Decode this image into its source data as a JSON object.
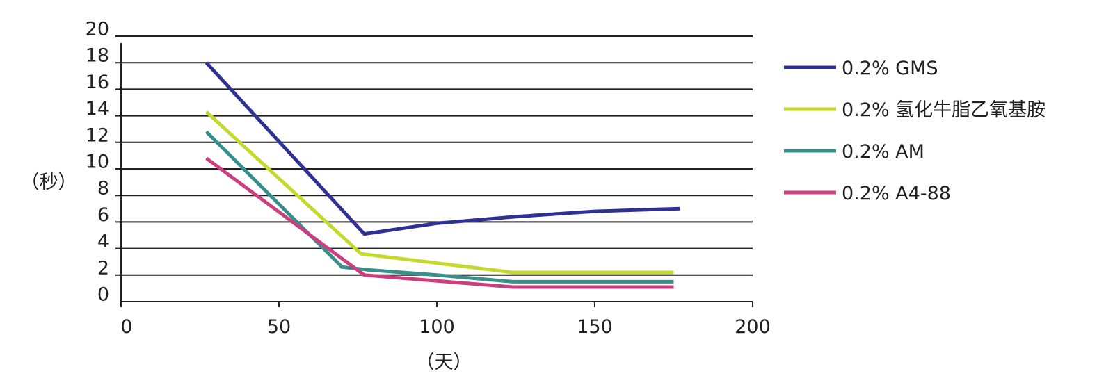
{
  "chart_data": {
    "type": "line",
    "xlabel": "（天）",
    "ylabel": "（秒）",
    "xlim": [
      0,
      200
    ],
    "ylim": [
      0,
      20
    ],
    "x_ticks": [
      "0",
      "50",
      "100",
      "150",
      "200"
    ],
    "y_ticks": [
      "0",
      "2",
      "4",
      "6",
      "8",
      "10",
      "12",
      "14",
      "16",
      "18",
      "20"
    ],
    "grid": "horizontal",
    "legend_position": "right",
    "series": [
      {
        "name": "0.2% GMS",
        "color": "#2e3192",
        "points": [
          [
            27,
            18.0
          ],
          [
            77,
            5.1
          ],
          [
            100,
            5.9
          ],
          [
            125,
            6.4
          ],
          [
            150,
            6.8
          ],
          [
            177,
            7.0
          ]
        ]
      },
      {
        "name": "0.2% 氢化牛脂乙氧基胺",
        "color": "#c4d82d",
        "points": [
          [
            27,
            14.3
          ],
          [
            76,
            3.6
          ],
          [
            124,
            2.2
          ],
          [
            175,
            2.2
          ]
        ]
      },
      {
        "name": "0.2% AM",
        "color": "#3a8f8a",
        "points": [
          [
            27,
            12.8
          ],
          [
            70,
            2.6
          ],
          [
            78,
            2.4
          ],
          [
            100,
            2.0
          ],
          [
            124,
            1.5
          ],
          [
            175,
            1.5
          ]
        ]
      },
      {
        "name": "0.2% A4-88",
        "color": "#cc3f7e",
        "points": [
          [
            27,
            10.8
          ],
          [
            77,
            2.0
          ],
          [
            124,
            1.1
          ],
          [
            175,
            1.1
          ]
        ]
      }
    ]
  }
}
